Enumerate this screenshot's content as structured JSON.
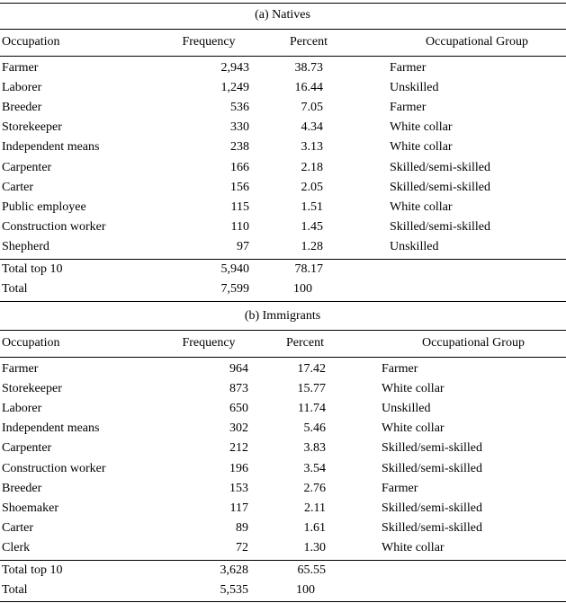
{
  "panels": [
    {
      "title": "(a) Natives",
      "header": [
        "Occupation",
        "Frequency",
        "Percent",
        "Occupational Group"
      ],
      "rows": [
        [
          "Farmer",
          "2,943",
          "38.73",
          "Farmer"
        ],
        [
          "Laborer",
          "1,249",
          "16.44",
          "Unskilled"
        ],
        [
          "Breeder",
          "536",
          "7.05",
          "Farmer"
        ],
        [
          "Storekeeper",
          "330",
          "4.34",
          "White collar"
        ],
        [
          "Independent means",
          "238",
          "3.13",
          "White collar"
        ],
        [
          "Carpenter",
          "166",
          "2.18",
          "Skilled/semi-skilled"
        ],
        [
          "Carter",
          "156",
          "2.05",
          "Skilled/semi-skilled"
        ],
        [
          "Public employee",
          "115",
          "1.51",
          "White collar"
        ],
        [
          "Construction worker",
          "110",
          "1.45",
          "Skilled/semi-skilled"
        ],
        [
          "Shepherd",
          "97",
          "1.28",
          "Unskilled"
        ]
      ],
      "totals": [
        [
          "Total top 10",
          "5,940",
          "78.17"
        ],
        [
          "Total",
          "7,599",
          "100"
        ]
      ]
    },
    {
      "title": "(b) Immigrants",
      "header": [
        "Occupation",
        "Frequency",
        "Percent",
        "Occupational Group"
      ],
      "rows": [
        [
          "Farmer",
          "964",
          "17.42",
          "Farmer"
        ],
        [
          "Storekeeper",
          "873",
          "15.77",
          "White collar"
        ],
        [
          "Laborer",
          "650",
          "11.74",
          "Unskilled"
        ],
        [
          "Independent means",
          "302",
          "5.46",
          "White collar"
        ],
        [
          "Carpenter",
          "212",
          "3.83",
          "Skilled/semi-skilled"
        ],
        [
          "Construction worker",
          "196",
          "3.54",
          "Skilled/semi-skilled"
        ],
        [
          "Breeder",
          "153",
          "2.76",
          "Farmer"
        ],
        [
          "Shoemaker",
          "117",
          "2.11",
          "Skilled/semi-skilled"
        ],
        [
          "Carter",
          "89",
          "1.61",
          "Skilled/semi-skilled"
        ],
        [
          "Clerk",
          "72",
          "1.30",
          "White collar"
        ]
      ],
      "totals": [
        [
          "Total top 10",
          "3,628",
          "65.55"
        ],
        [
          "Total",
          "5,535",
          "100"
        ]
      ]
    }
  ]
}
